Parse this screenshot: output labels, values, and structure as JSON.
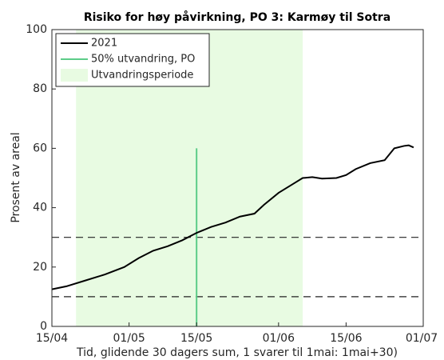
{
  "chart_data": {
    "type": "line",
    "title": "Risiko for høy påvirkning, PO 3: Karmøy til Sotra",
    "xlabel": "Tid, glidende 30 dagers sum, 1 svarer til 1mai: 1mai+30)",
    "ylabel": "Prosent av areal",
    "x": [
      "15/04",
      "18/04",
      "22/04",
      "26/04",
      "30/04",
      "03/05",
      "06/05",
      "09/05",
      "12/05",
      "15/05",
      "18/05",
      "21/05",
      "24/05",
      "27/05",
      "29/05",
      "01/06",
      "04/06",
      "06/06",
      "08/06",
      "10/06",
      "13/06",
      "15/06",
      "17/06",
      "20/06",
      "23/06",
      "25/06",
      "27/06",
      "28/06",
      "29/06"
    ],
    "series": [
      {
        "name": "2021",
        "color": "#000000",
        "values": [
          12.5,
          13.5,
          15.5,
          17.5,
          20,
          23,
          25.5,
          27,
          29,
          31.5,
          33.5,
          35,
          37,
          38,
          41,
          45,
          48,
          50,
          50.3,
          49.8,
          50,
          51,
          53,
          55,
          56,
          60,
          60.8,
          61,
          60.3
        ]
      }
    ],
    "vline": {
      "name": "50% utvandring, PO",
      "x": "15/05",
      "value": 60,
      "color": "#5ccc88"
    },
    "span": {
      "name": "Utvandringsperiode",
      "x": [
        "20/04",
        "06/06"
      ],
      "color": "#e8fbe2"
    },
    "hlines": [
      10,
      30
    ],
    "xlim": [
      "15/04",
      "01/07"
    ],
    "xticks": [
      "15/04",
      "01/05",
      "15/05",
      "01/06",
      "15/06",
      "01/07"
    ],
    "ylim": [
      0,
      100
    ],
    "yticks": [
      0,
      20,
      40,
      60,
      80,
      100
    ],
    "legend": "upper left"
  }
}
